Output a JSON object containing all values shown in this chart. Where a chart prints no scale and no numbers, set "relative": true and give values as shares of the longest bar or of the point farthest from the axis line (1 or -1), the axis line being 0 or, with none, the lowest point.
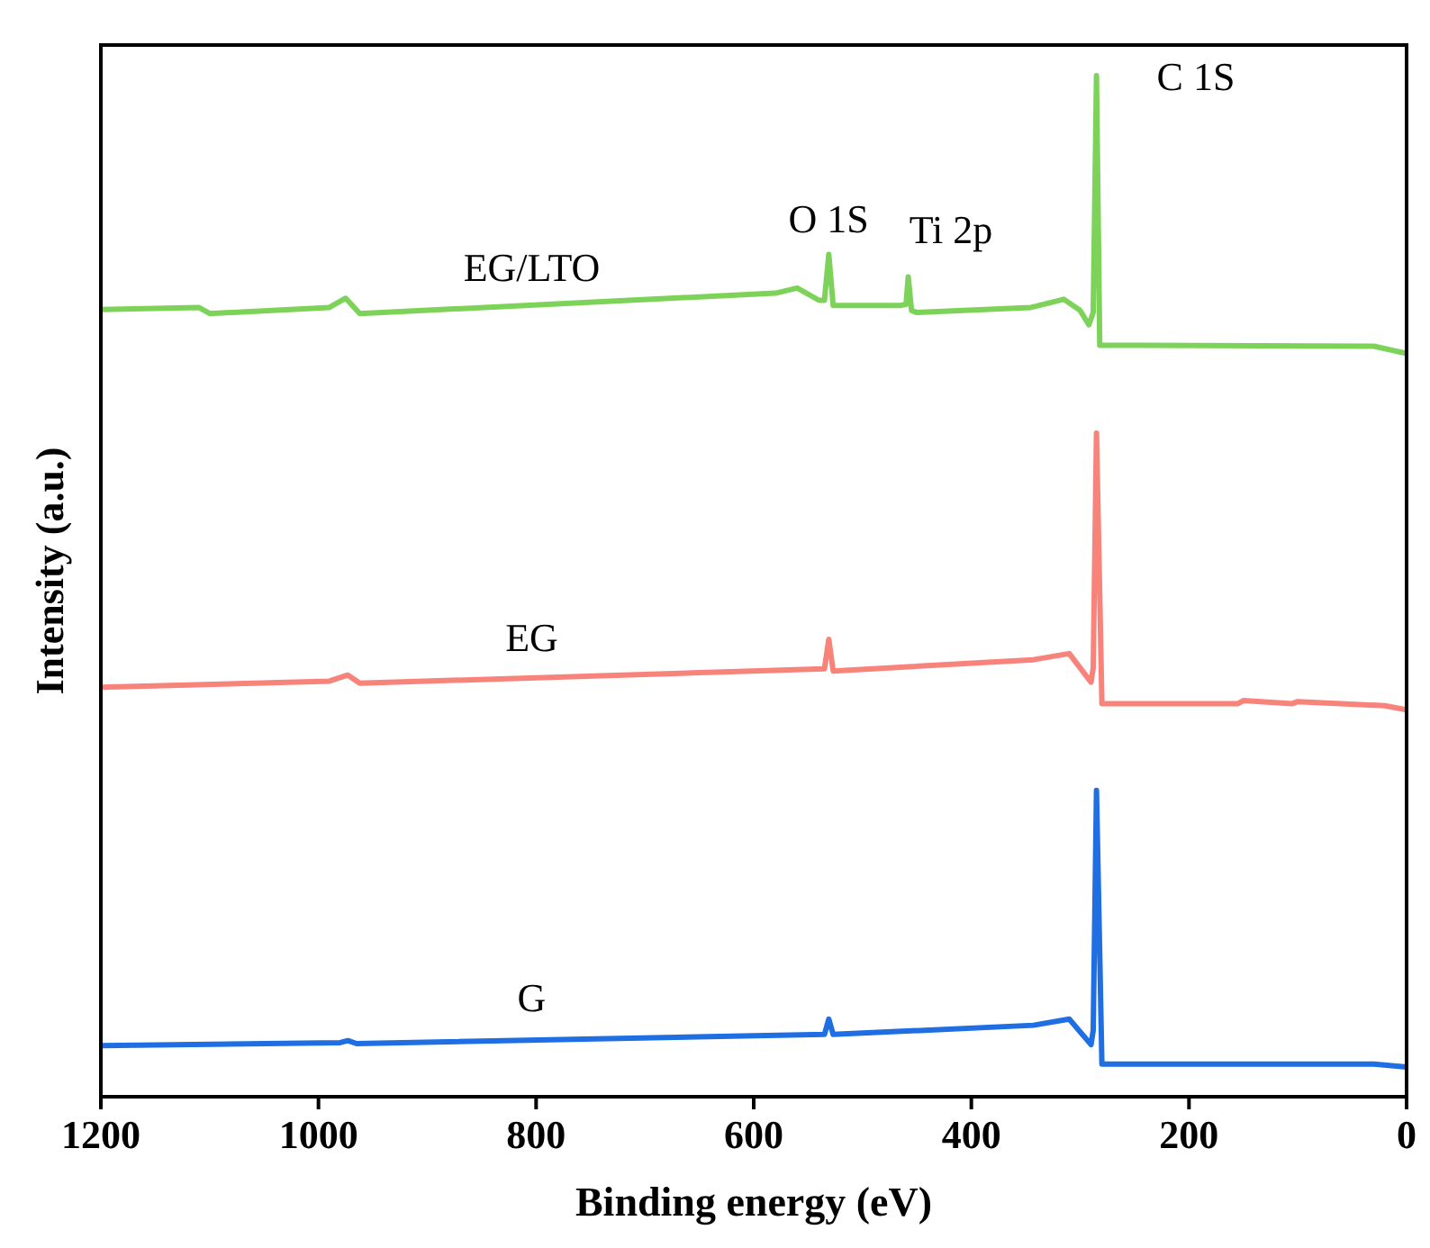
{
  "chart_data": {
    "type": "line",
    "relative": true,
    "xlabel": "Binding energy (eV)",
    "ylabel": "Intensity (a.u.)",
    "xlim": [
      1200,
      0
    ],
    "xticks": [
      1200,
      1000,
      800,
      600,
      400,
      200,
      0
    ],
    "marker": "none",
    "line_style": "solid",
    "series": [
      {
        "name": "EG/LTO",
        "color": "#7dd35a",
        "x": [
          1200,
          1110,
          1100,
          990,
          975,
          962,
          580,
          560,
          540,
          535,
          531,
          527,
          465,
          460,
          458,
          455,
          450,
          345,
          315,
          300,
          292,
          288,
          285,
          282,
          30,
          0
        ],
        "values": [
          0.771,
          0.773,
          0.767,
          0.773,
          0.782,
          0.767,
          0.787,
          0.792,
          0.78,
          0.78,
          0.825,
          0.775,
          0.775,
          0.776,
          0.803,
          0.77,
          0.768,
          0.773,
          0.781,
          0.77,
          0.756,
          0.768,
          1,
          0.736,
          0.735,
          0.728
        ]
      },
      {
        "name": "EG",
        "color": "#f8837a",
        "x": [
          1200,
          990,
          973,
          962,
          535,
          531,
          527,
          343,
          310,
          290,
          288,
          285,
          280,
          155,
          150,
          105,
          100,
          20,
          0
        ],
        "values": [
          0.401,
          0.407,
          0.413,
          0.405,
          0.419,
          0.448,
          0.417,
          0.428,
          0.434,
          0.406,
          0.42,
          0.65,
          0.385,
          0.385,
          0.388,
          0.385,
          0.387,
          0.383,
          0.379
        ]
      },
      {
        "name": "G",
        "color": "#1f6fe3",
        "x": [
          1200,
          980,
          973,
          965,
          535,
          531,
          527,
          343,
          310,
          290,
          288,
          285,
          280,
          30,
          0
        ],
        "values": [
          0.05,
          0.053,
          0.055,
          0.052,
          0.061,
          0.076,
          0.061,
          0.07,
          0.076,
          0.051,
          0.065,
          0.3,
          0.032,
          0.032,
          0.029
        ]
      }
    ],
    "annotations": [
      "O 1S",
      "Ti 2p",
      "C 1S"
    ]
  }
}
